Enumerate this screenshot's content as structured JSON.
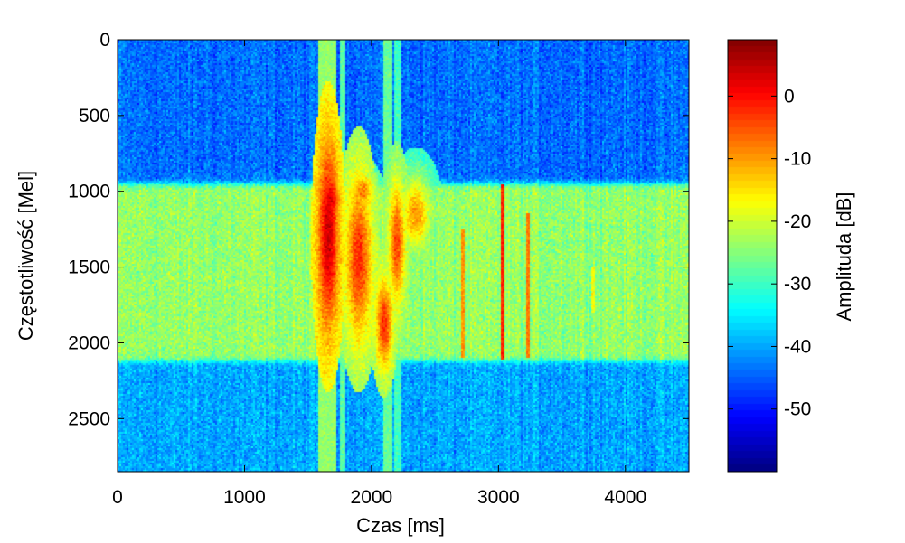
{
  "chart_data": {
    "type": "heatmap",
    "title": "",
    "xlabel": "Czas [ms]",
    "ylabel": "Częstotliwość [Mel]",
    "xlim": [
      0,
      4500
    ],
    "ylim": [
      0,
      2850
    ],
    "y_reversed": true,
    "x_ticks": [
      0,
      1000,
      2000,
      3000,
      4000
    ],
    "y_ticks": [
      0,
      500,
      1000,
      1500,
      2000,
      2500
    ],
    "colorbar": {
      "label": "Amplitude [dB]",
      "label_text": "Amplituda [dB]",
      "range": [
        -60,
        9
      ],
      "ticks": [
        0,
        -10,
        -20,
        -30,
        -40,
        -50
      ],
      "colormap": "jet"
    },
    "background_levels_db": {
      "low_band_0_950": -44,
      "mid_band_950_2120": -24,
      "high_band_2120_2850": -40
    },
    "features": [
      {
        "kind": "vertical_band",
        "x_range": [
          1580,
          1720
        ],
        "level_db": -24
      },
      {
        "kind": "vertical_band",
        "x_range": [
          1745,
          1800
        ],
        "level_db": -28
      },
      {
        "kind": "vertical_band",
        "x_range": [
          2100,
          2160
        ],
        "level_db": -27
      },
      {
        "kind": "vertical_band",
        "x_range": [
          2175,
          2240
        ],
        "level_db": -30
      },
      {
        "kind": "blob",
        "x": 1660,
        "y": 1300,
        "sx": 55,
        "sy": 420,
        "level_db": 4
      },
      {
        "kind": "blob",
        "x": 1680,
        "y": 1050,
        "sx": 45,
        "sy": 120,
        "level_db": 2
      },
      {
        "kind": "blob",
        "x": 1900,
        "y": 1450,
        "sx": 70,
        "sy": 360,
        "level_db": -2
      },
      {
        "kind": "blob",
        "x": 1930,
        "y": 1000,
        "sx": 70,
        "sy": 90,
        "level_db": -8
      },
      {
        "kind": "blob",
        "x": 2100,
        "y": 1870,
        "sx": 45,
        "sy": 200,
        "level_db": -2
      },
      {
        "kind": "blob",
        "x": 2200,
        "y": 1350,
        "sx": 45,
        "sy": 280,
        "level_db": -4
      },
      {
        "kind": "blob",
        "x": 2350,
        "y": 1150,
        "sx": 90,
        "sy": 180,
        "level_db": -10
      },
      {
        "kind": "line",
        "x": 2720,
        "y_range": [
          1250,
          2100
        ],
        "level_db": -10
      },
      {
        "kind": "line",
        "x": 3030,
        "y_range": [
          950,
          2110
        ],
        "level_db": -2
      },
      {
        "kind": "line",
        "x": 3230,
        "y_range": [
          1150,
          2100
        ],
        "level_db": -8
      },
      {
        "kind": "line",
        "x": 3750,
        "y_range": [
          1500,
          1800
        ],
        "level_db": -18
      }
    ]
  }
}
